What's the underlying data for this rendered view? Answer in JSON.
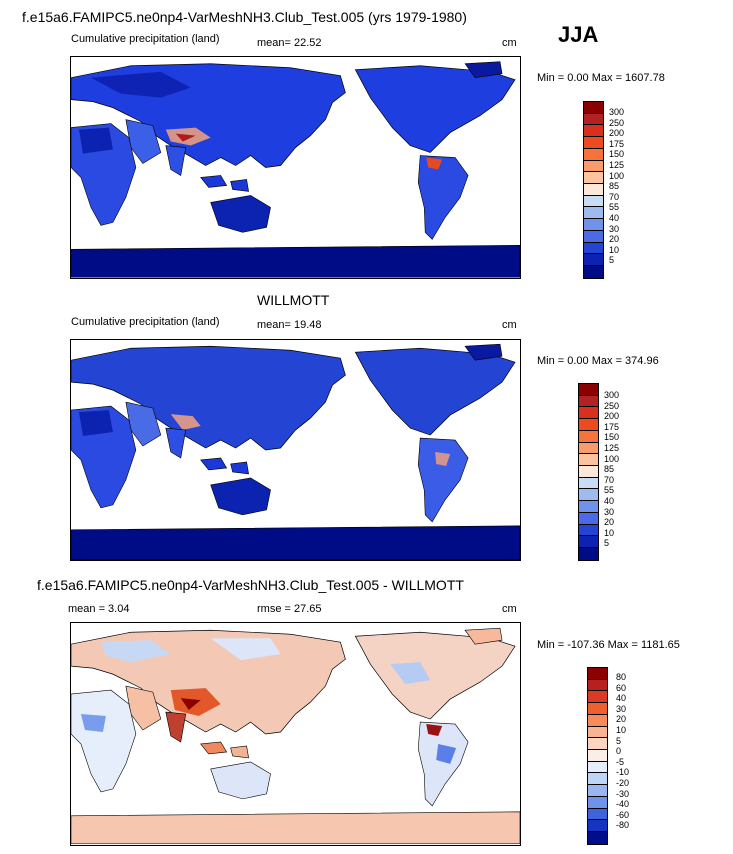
{
  "season": "JJA",
  "panels": [
    {
      "title": "f.e15a6.FAMIPC5.ne0np4-VarMeshNH3.Club_Test.005 (yrs 1979-1980)",
      "left_label": "Cumulative precipitation (land)",
      "stat_label": "mean=  22.52",
      "units": "cm",
      "minmax": "Min =   0.00 Max = 1607.78",
      "scale": "precip",
      "colorbar_labels": [
        "300",
        "250",
        "200",
        "175",
        "150",
        "125",
        "100",
        "85",
        "70",
        "55",
        "40",
        "30",
        "20",
        "10",
        "5"
      ]
    },
    {
      "title": "WILLMOTT",
      "left_label": "Cumulative precipitation (land)",
      "stat_label": "mean=  19.48",
      "units": "cm",
      "minmax": "Min =   0.00 Max = 374.96",
      "scale": "precip",
      "colorbar_labels": [
        "300",
        "250",
        "200",
        "175",
        "150",
        "125",
        "100",
        "85",
        "70",
        "55",
        "40",
        "30",
        "20",
        "10",
        "5"
      ]
    },
    {
      "title": "f.e15a6.FAMIPC5.ne0np4-VarMeshNH3.Club_Test.005 - WILLMOTT",
      "left_label": "mean =   3.04",
      "stat_label": "rmse =  27.65",
      "units": "cm",
      "minmax": "Min = -107.36 Max = 1181.65",
      "scale": "diff",
      "colorbar_labels": [
        "80",
        "60",
        "40",
        "30",
        "20",
        "10",
        "5",
        "0",
        "-5",
        "-10",
        "-20",
        "-30",
        "-40",
        "-60",
        "-80"
      ]
    }
  ],
  "colors": {
    "precip": [
      "#8b0000",
      "#b22222",
      "#d8301c",
      "#ee4a20",
      "#f6743c",
      "#f89c6c",
      "#fbc3a0",
      "#fbe8d8",
      "#c9dcf6",
      "#9cbcf0",
      "#6f93ea",
      "#4a6be6",
      "#2444d4",
      "#0c22b0",
      "#000b86"
    ],
    "diff": [
      "#8b0000",
      "#b81f1f",
      "#dc3a24",
      "#f0602d",
      "#f78c5a",
      "#fab392",
      "#fbd5c2",
      "#fbeee6",
      "#e4eefc",
      "#c0d4f6",
      "#9ab6f0",
      "#6f92ea",
      "#3e63dd",
      "#1634c0",
      "#000e8c"
    ]
  }
}
